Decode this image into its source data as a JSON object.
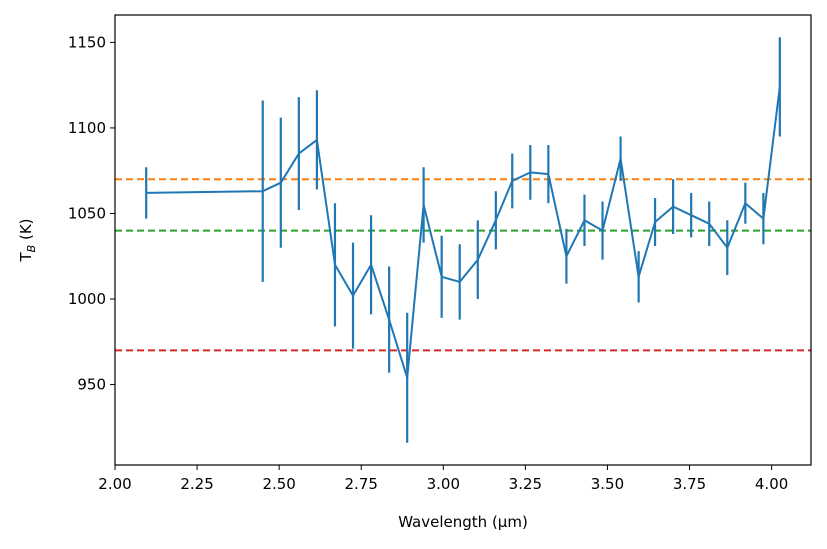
{
  "chart_data": {
    "type": "line",
    "xlabel": "Wavelength (μm)",
    "ylabel_main": "T",
    "ylabel_sub": "B",
    "ylabel_unit": " (K)",
    "xlim": [
      2.0,
      4.12
    ],
    "ylim": [
      903,
      1166
    ],
    "xticks": [
      2.0,
      2.25,
      2.5,
      2.75,
      3.0,
      3.25,
      3.5,
      3.75,
      4.0
    ],
    "xtick_labels": [
      "2.00",
      "2.25",
      "2.50",
      "2.75",
      "3.00",
      "3.25",
      "3.50",
      "3.75",
      "4.00"
    ],
    "yticks": [
      950,
      1000,
      1050,
      1100,
      1150
    ],
    "ytick_labels": [
      "950",
      "1000",
      "1050",
      "1100",
      "1150"
    ],
    "grid": false,
    "series": [
      {
        "color": "#1f77b4",
        "x": [
          2.095,
          2.45,
          2.505,
          2.56,
          2.615,
          2.67,
          2.725,
          2.78,
          2.835,
          2.89,
          2.94,
          2.995,
          3.05,
          3.105,
          3.16,
          3.21,
          3.265,
          3.32,
          3.375,
          3.43,
          3.485,
          3.54,
          3.595,
          3.645,
          3.7,
          3.755,
          3.81,
          3.865,
          3.92,
          3.975,
          4.025
        ],
        "y": [
          1062,
          1063,
          1068,
          1085,
          1093,
          1020,
          1002,
          1020,
          988,
          954,
          1055,
          1013,
          1010,
          1023,
          1046,
          1069,
          1074,
          1073,
          1025,
          1046,
          1040,
          1082,
          1013,
          1045,
          1054,
          1049,
          1044,
          1030,
          1056,
          1047,
          1124
        ],
        "yerr": [
          15,
          53,
          38,
          33,
          29,
          36,
          31,
          29,
          31,
          38,
          22,
          24,
          22,
          23,
          17,
          16,
          16,
          17,
          16,
          15,
          17,
          13,
          15,
          14,
          16,
          13,
          13,
          16,
          12,
          15,
          29
        ]
      }
    ],
    "hlines": [
      {
        "y": 1070,
        "color": "#ff7f0e",
        "style": "dashed"
      },
      {
        "y": 1040,
        "color": "#2ca02c",
        "style": "dashed"
      },
      {
        "y": 970,
        "color": "#d62728",
        "style": "dashed"
      }
    ]
  }
}
